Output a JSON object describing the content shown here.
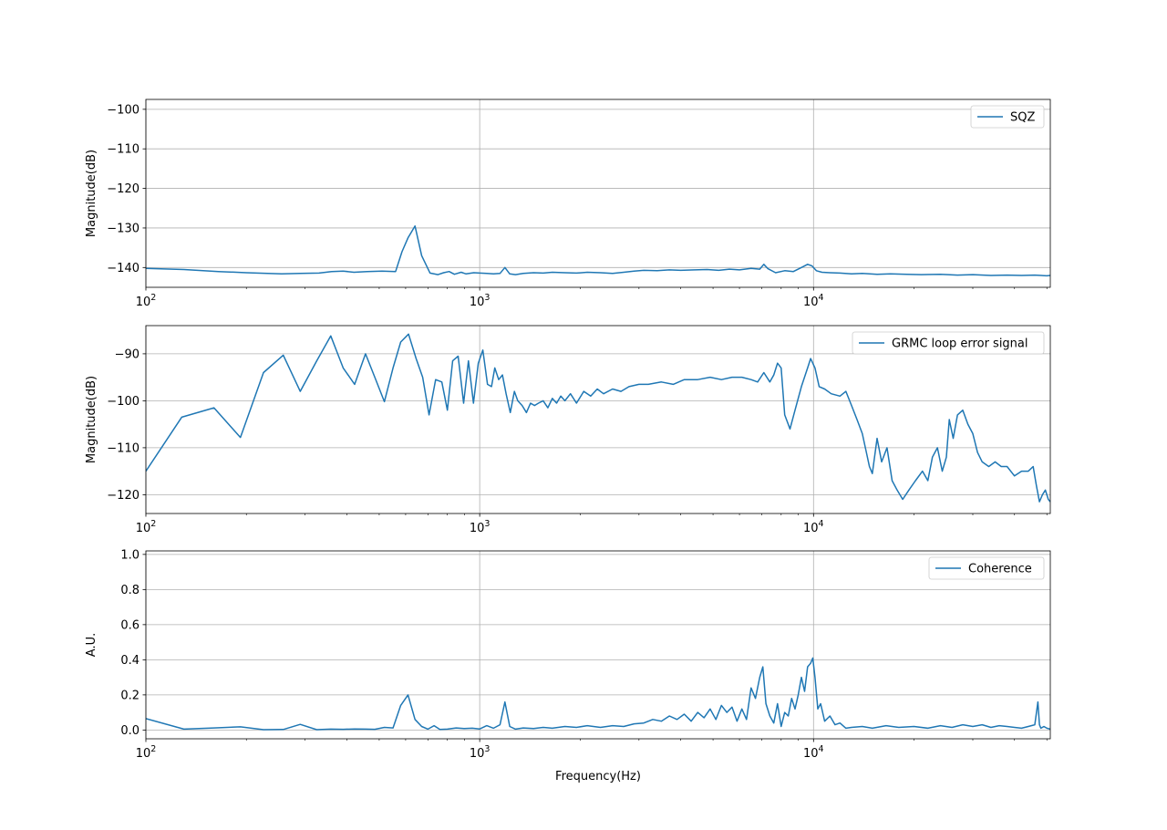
{
  "chart_data": [
    {
      "type": "line",
      "xscale": "log",
      "xlim": [
        100,
        51200
      ],
      "ylim": [
        -145,
        -97.5
      ],
      "ylabel": "Magnitude(dB)",
      "xlabel": "",
      "grid": true,
      "legend": "top-right",
      "xticks": [
        {
          "value": 100,
          "base": "10",
          "exp": "2"
        },
        {
          "value": 1000,
          "base": "10",
          "exp": "3"
        },
        {
          "value": 10000,
          "base": "10",
          "exp": "4"
        }
      ],
      "yticks": [
        -140,
        -130,
        -120,
        -110,
        -100
      ],
      "color": "#1f77b4",
      "series": [
        {
          "name": "SQZ",
          "x": [
            100,
            130,
            165,
            200,
            255,
            290,
            330,
            360,
            390,
            420,
            460,
            510,
            560,
            585,
            610,
            640,
            670,
            710,
            750,
            780,
            810,
            840,
            880,
            910,
            960,
            1000,
            1050,
            1100,
            1150,
            1190,
            1230,
            1280,
            1350,
            1450,
            1550,
            1650,
            1800,
            1950,
            2100,
            2300,
            2500,
            2700,
            2900,
            3100,
            3400,
            3700,
            4000,
            4400,
            4800,
            5200,
            5600,
            6000,
            6500,
            6900,
            7100,
            7300,
            7700,
            8200,
            8700,
            9200,
            9600,
            9900,
            10200,
            10600,
            11200,
            12000,
            13000,
            14000,
            15500,
            17000,
            19000,
            21000,
            24000,
            27000,
            30000,
            34000,
            38000,
            42000,
            46000,
            50000,
            51200
          ],
          "y": [
            -140.2,
            -140.5,
            -141.0,
            -141.3,
            -141.6,
            -141.5,
            -141.4,
            -141.0,
            -140.9,
            -141.2,
            -141.0,
            -140.9,
            -141.0,
            -136.0,
            -132.5,
            -129.5,
            -137.0,
            -141.4,
            -141.8,
            -141.3,
            -141.0,
            -141.7,
            -141.2,
            -141.6,
            -141.3,
            -141.4,
            -141.5,
            -141.6,
            -141.5,
            -140.0,
            -141.6,
            -141.8,
            -141.5,
            -141.3,
            -141.4,
            -141.2,
            -141.3,
            -141.4,
            -141.2,
            -141.3,
            -141.5,
            -141.2,
            -140.9,
            -140.7,
            -140.8,
            -140.6,
            -140.7,
            -140.6,
            -140.5,
            -140.7,
            -140.4,
            -140.6,
            -140.2,
            -140.4,
            -139.2,
            -140.3,
            -141.3,
            -140.8,
            -141.0,
            -140.0,
            -139.2,
            -139.6,
            -140.8,
            -141.2,
            -141.3,
            -141.4,
            -141.6,
            -141.5,
            -141.7,
            -141.6,
            -141.7,
            -141.8,
            -141.7,
            -141.9,
            -141.8,
            -142.0,
            -141.9,
            -142.0,
            -141.9,
            -142.1,
            -142.0
          ]
        }
      ]
    },
    {
      "type": "line",
      "xscale": "log",
      "xlim": [
        100,
        51200
      ],
      "ylim": [
        -124,
        -84
      ],
      "ylabel": "Magnitude(dB)",
      "xlabel": "",
      "grid": true,
      "legend": "top-right",
      "xticks": [
        {
          "value": 100,
          "base": "10",
          "exp": "2"
        },
        {
          "value": 1000,
          "base": "10",
          "exp": "3"
        },
        {
          "value": 10000,
          "base": "10",
          "exp": "4"
        }
      ],
      "yticks": [
        -120,
        -110,
        -100,
        -90
      ],
      "color": "#1f77b4",
      "series": [
        {
          "name": "GRMC loop error signal",
          "x": [
            100,
            128,
            160,
            192,
            225,
            258,
            290,
            325,
            358,
            390,
            422,
            455,
            485,
            518,
            550,
            580,
            612,
            645,
            675,
            705,
            738,
            770,
            800,
            830,
            862,
            895,
            925,
            958,
            990,
            1022,
            1055,
            1085,
            1110,
            1140,
            1170,
            1200,
            1235,
            1270,
            1300,
            1340,
            1380,
            1420,
            1460,
            1500,
            1550,
            1600,
            1650,
            1700,
            1750,
            1800,
            1870,
            1950,
            2050,
            2150,
            2250,
            2350,
            2500,
            2650,
            2800,
            3000,
            3200,
            3500,
            3800,
            4100,
            4500,
            4900,
            5300,
            5700,
            6100,
            6500,
            6800,
            7100,
            7400,
            7600,
            7800,
            8000,
            8200,
            8500,
            8800,
            9200,
            9600,
            9800,
            10100,
            10400,
            10800,
            11300,
            12000,
            12500,
            13000,
            13500,
            14000,
            14400,
            14700,
            15000,
            15500,
            16000,
            16600,
            17200,
            17800,
            18500,
            19300,
            20200,
            21200,
            22000,
            22700,
            23500,
            24300,
            25000,
            25500,
            26200,
            27000,
            28000,
            29000,
            30000,
            31000,
            32000,
            33500,
            35000,
            36500,
            38000,
            40000,
            42000,
            44000,
            45500,
            46500,
            47500,
            48500,
            49500,
            50500,
            51200
          ],
          "y": [
            -115,
            -103.5,
            -101.5,
            -107.8,
            -94,
            -90.3,
            -98,
            -91.5,
            -86.2,
            -93,
            -96.5,
            -90,
            -95,
            -100.2,
            -93,
            -87.5,
            -85.8,
            -91,
            -95,
            -103,
            -95.5,
            -96,
            -102,
            -91.5,
            -90.5,
            -100.5,
            -91.5,
            -100.5,
            -92,
            -89.2,
            -96.5,
            -97,
            -93,
            -95.5,
            -94.5,
            -98.5,
            -102.5,
            -98,
            -100,
            -101,
            -102.5,
            -100.5,
            -101,
            -100.5,
            -100,
            -101.5,
            -99.5,
            -100.5,
            -99,
            -100,
            -98.5,
            -100.5,
            -98,
            -99,
            -97.5,
            -98.5,
            -97.5,
            -98,
            -97,
            -96.5,
            -96.5,
            -96,
            -96.5,
            -95.5,
            -95.5,
            -95,
            -95.5,
            -95,
            -95,
            -95.5,
            -96,
            -94,
            -96,
            -94.5,
            -92,
            -93,
            -103,
            -106,
            -102,
            -97,
            -93,
            -91,
            -93,
            -97,
            -97.5,
            -98.5,
            -99,
            -98,
            -101,
            -104,
            -107,
            -111,
            -114,
            -115.5,
            -108,
            -113,
            -110,
            -117,
            -119,
            -121,
            -119,
            -117,
            -115,
            -117,
            -112,
            -110,
            -115,
            -112,
            -104,
            -108,
            -103,
            -102,
            -105,
            -107,
            -111,
            -113,
            -114,
            -113,
            -114,
            -114,
            -116,
            -115,
            -115,
            -114,
            -118,
            -121.5,
            -120,
            -119,
            -121,
            -121.5
          ]
        }
      ]
    },
    {
      "type": "line",
      "xscale": "log",
      "xlim": [
        100,
        51200
      ],
      "ylim": [
        -0.05,
        1.02
      ],
      "ylabel": "A.U.",
      "xlabel": "Frequency(Hz)",
      "grid": true,
      "legend": "top-right",
      "xticks": [
        {
          "value": 100,
          "base": "10",
          "exp": "2"
        },
        {
          "value": 1000,
          "base": "10",
          "exp": "3"
        },
        {
          "value": 10000,
          "base": "10",
          "exp": "4"
        }
      ],
      "yticks": [
        "0.0",
        "0.2",
        "0.4",
        "0.6",
        "0.8",
        "1.0"
      ],
      "color": "#1f77b4",
      "series": [
        {
          "name": "Coherence",
          "x": [
            100,
            130,
            160,
            192,
            225,
            258,
            290,
            325,
            358,
            390,
            422,
            455,
            485,
            518,
            550,
            580,
            610,
            640,
            670,
            700,
            730,
            760,
            800,
            850,
            900,
            950,
            1000,
            1050,
            1100,
            1150,
            1190,
            1230,
            1280,
            1350,
            1450,
            1550,
            1650,
            1800,
            1950,
            2100,
            2300,
            2500,
            2700,
            2900,
            3100,
            3300,
            3500,
            3700,
            3900,
            4100,
            4300,
            4500,
            4700,
            4900,
            5100,
            5300,
            5500,
            5700,
            5900,
            6100,
            6300,
            6500,
            6700,
            6900,
            7050,
            7200,
            7400,
            7600,
            7800,
            8000,
            8200,
            8400,
            8600,
            8800,
            9000,
            9200,
            9400,
            9600,
            9800,
            9950,
            10100,
            10300,
            10500,
            10800,
            11200,
            11600,
            12000,
            12500,
            13000,
            14000,
            15000,
            16500,
            18000,
            20000,
            22000,
            24000,
            26000,
            28000,
            30000,
            32000,
            34000,
            36000,
            38000,
            40000,
            42000,
            44000,
            46000,
            47000,
            47500,
            48000,
            49000,
            50000,
            51200
          ],
          "y": [
            0.065,
            0.005,
            0.012,
            0.018,
            0.002,
            0.003,
            0.032,
            0.002,
            0.005,
            0.004,
            0.006,
            0.005,
            0.004,
            0.015,
            0.012,
            0.14,
            0.2,
            0.06,
            0.02,
            0.005,
            0.025,
            0.003,
            0.005,
            0.012,
            0.008,
            0.01,
            0.006,
            0.025,
            0.01,
            0.03,
            0.16,
            0.02,
            0.005,
            0.012,
            0.008,
            0.015,
            0.01,
            0.02,
            0.015,
            0.025,
            0.015,
            0.025,
            0.02,
            0.035,
            0.04,
            0.06,
            0.05,
            0.08,
            0.06,
            0.09,
            0.05,
            0.1,
            0.07,
            0.12,
            0.06,
            0.14,
            0.1,
            0.13,
            0.05,
            0.12,
            0.06,
            0.24,
            0.18,
            0.3,
            0.36,
            0.15,
            0.08,
            0.04,
            0.15,
            0.02,
            0.1,
            0.08,
            0.18,
            0.12,
            0.2,
            0.3,
            0.22,
            0.36,
            0.38,
            0.41,
            0.3,
            0.12,
            0.15,
            0.05,
            0.08,
            0.03,
            0.04,
            0.01,
            0.015,
            0.02,
            0.01,
            0.025,
            0.015,
            0.02,
            0.01,
            0.025,
            0.015,
            0.03,
            0.02,
            0.03,
            0.015,
            0.025,
            0.02,
            0.015,
            0.01,
            0.02,
            0.03,
            0.16,
            0.03,
            0.01,
            0.02,
            0.01,
            0.005
          ]
        }
      ]
    }
  ]
}
